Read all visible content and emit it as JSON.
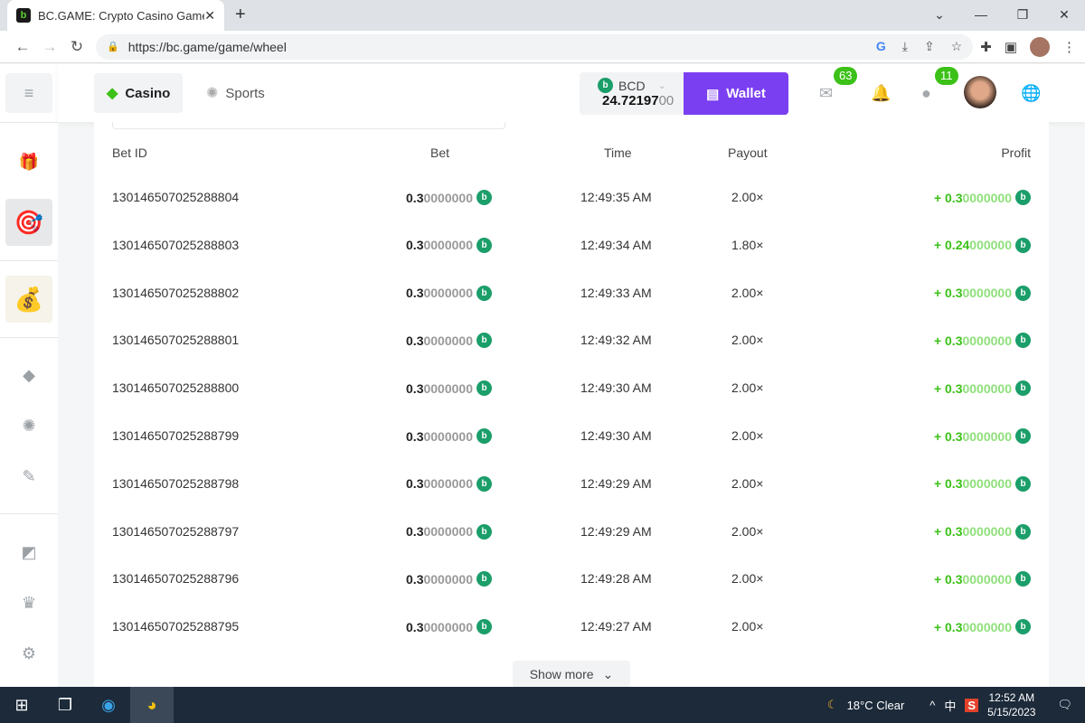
{
  "browser": {
    "tab_title": "BC.GAME: Crypto Casino Games & Casino Slot Games",
    "url": "https://bc.game/game/wheel"
  },
  "header": {
    "casino": "Casino",
    "sports": "Sports",
    "currency": "BCD",
    "balance_main": "24.72197",
    "balance_zeros": "00",
    "wallet": "Wallet",
    "mail_badge": "63",
    "chat_badge": "11"
  },
  "table": {
    "headers": {
      "id": "Bet ID",
      "bet": "Bet",
      "time": "Time",
      "payout": "Payout",
      "profit": "Profit"
    },
    "rows": [
      {
        "id": "130146507025288804",
        "bet": "0.3",
        "bet_z": "0000000",
        "time": "12:49:35 AM",
        "payout": "2.00×",
        "profit": "+ 0.3",
        "profit_z": "0000000"
      },
      {
        "id": "130146507025288803",
        "bet": "0.3",
        "bet_z": "0000000",
        "time": "12:49:34 AM",
        "payout": "1.80×",
        "profit": "+ 0.24",
        "profit_z": "000000"
      },
      {
        "id": "130146507025288802",
        "bet": "0.3",
        "bet_z": "0000000",
        "time": "12:49:33 AM",
        "payout": "2.00×",
        "profit": "+ 0.3",
        "profit_z": "0000000"
      },
      {
        "id": "130146507025288801",
        "bet": "0.3",
        "bet_z": "0000000",
        "time": "12:49:32 AM",
        "payout": "2.00×",
        "profit": "+ 0.3",
        "profit_z": "0000000"
      },
      {
        "id": "130146507025288800",
        "bet": "0.3",
        "bet_z": "0000000",
        "time": "12:49:30 AM",
        "payout": "2.00×",
        "profit": "+ 0.3",
        "profit_z": "0000000"
      },
      {
        "id": "130146507025288799",
        "bet": "0.3",
        "bet_z": "0000000",
        "time": "12:49:30 AM",
        "payout": "2.00×",
        "profit": "+ 0.3",
        "profit_z": "0000000"
      },
      {
        "id": "130146507025288798",
        "bet": "0.3",
        "bet_z": "0000000",
        "time": "12:49:29 AM",
        "payout": "2.00×",
        "profit": "+ 0.3",
        "profit_z": "0000000"
      },
      {
        "id": "130146507025288797",
        "bet": "0.3",
        "bet_z": "0000000",
        "time": "12:49:29 AM",
        "payout": "2.00×",
        "profit": "+ 0.3",
        "profit_z": "0000000"
      },
      {
        "id": "130146507025288796",
        "bet": "0.3",
        "bet_z": "0000000",
        "time": "12:49:28 AM",
        "payout": "2.00×",
        "profit": "+ 0.3",
        "profit_z": "0000000"
      },
      {
        "id": "130146507025288795",
        "bet": "0.3",
        "bet_z": "0000000",
        "time": "12:49:27 AM",
        "payout": "2.00×",
        "profit": "+ 0.3",
        "profit_z": "0000000"
      }
    ],
    "show_more": "Show more"
  },
  "taskbar": {
    "weather": "18°C  Clear",
    "ime": "中",
    "time": "12:52 AM",
    "date": "5/15/2023"
  },
  "colors": {
    "accent": "#7b3ff2",
    "profit": "#3bc117",
    "coin": "#1b9e6a"
  }
}
